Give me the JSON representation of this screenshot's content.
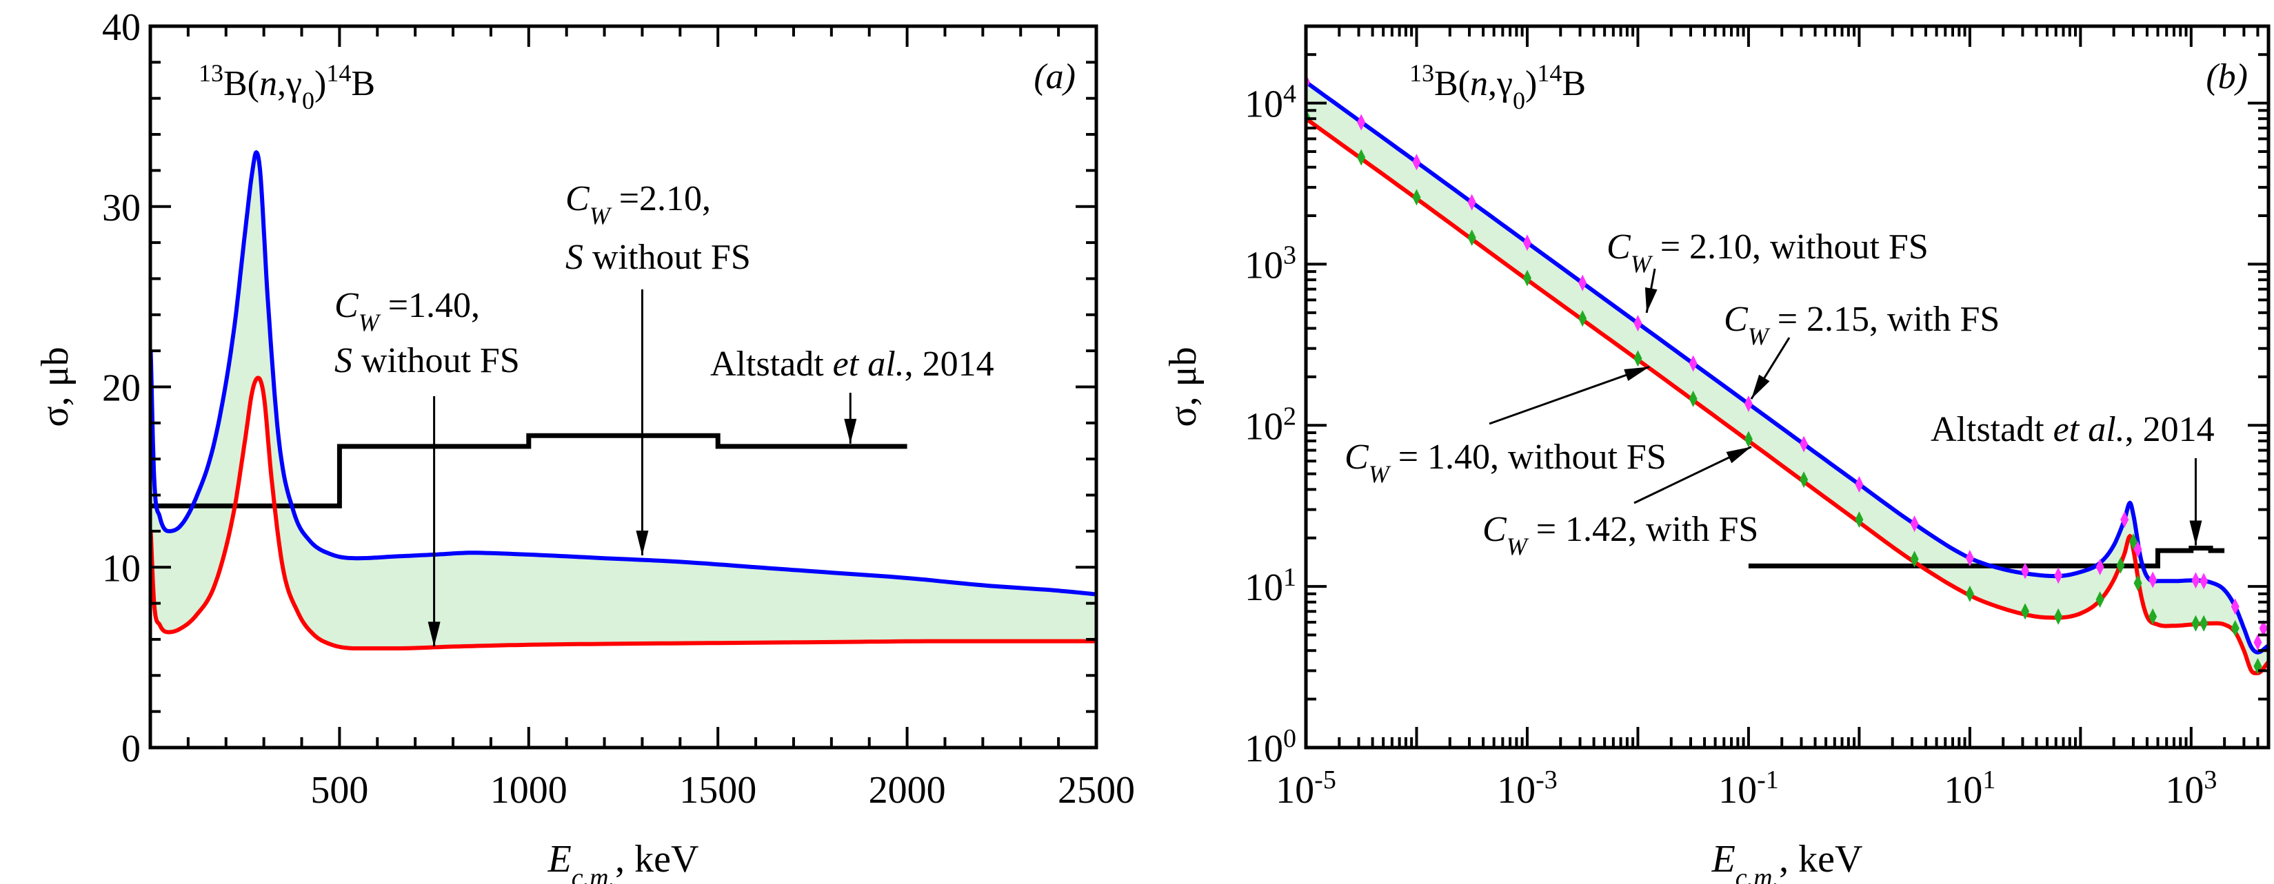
{
  "chart_data": [
    {
      "id": "a",
      "type": "area",
      "panel_label": "(a)",
      "reaction_label": {
        "pre_sup": "13",
        "main": "B(",
        "italic": "n",
        "comma": ",",
        "gamma": "γ",
        "sub": "0",
        "close": ")",
        "post_sup": "14",
        "post": "B"
      },
      "xlabel": {
        "main": "E",
        "sub": "c.m.",
        "rest": ", keV"
      },
      "ylabel": "σ, μb",
      "xscale": "linear",
      "yscale": "linear",
      "xlim": [
        0,
        2500
      ],
      "ylim": [
        0,
        40
      ],
      "xticks": [
        500,
        1000,
        1500,
        2000,
        2500
      ],
      "xtick_labels": [
        "500",
        "1000",
        "1500",
        "2000",
        "2500"
      ],
      "yticks": [
        0,
        10,
        20,
        30,
        40
      ],
      "ytick_labels": [
        "0",
        "10",
        "20",
        "30",
        "40"
      ],
      "band_color": "#d9f2d9",
      "series": [
        {
          "name": "C_W=2.10, S without FS",
          "color": "#0000ff",
          "x": [
            1,
            10,
            25,
            50,
            80,
            120,
            170,
            220,
            250,
            270,
            280,
            290,
            310,
            340,
            380,
            420,
            480,
            550,
            650,
            750,
            850,
            1000,
            1200,
            1400,
            1600,
            1800,
            2000,
            2200,
            2400,
            2500
          ],
          "y": [
            22.0,
            15.0,
            12.8,
            12.0,
            12.3,
            13.8,
            17.0,
            23.0,
            28.5,
            32.0,
            33.0,
            32.0,
            25.0,
            17.0,
            13.0,
            11.5,
            10.7,
            10.5,
            10.6,
            10.7,
            10.8,
            10.7,
            10.5,
            10.3,
            10.0,
            9.7,
            9.4,
            9.0,
            8.7,
            8.5
          ]
        },
        {
          "name": "C_W=1.40, S without FS",
          "color": "#ff0000",
          "x": [
            1,
            10,
            25,
            50,
            80,
            120,
            170,
            220,
            250,
            270,
            285,
            300,
            320,
            350,
            390,
            430,
            480,
            550,
            650,
            800,
            1000,
            1200,
            1500,
            1800,
            2100,
            2500
          ],
          "y": [
            12.0,
            8.0,
            6.8,
            6.4,
            6.6,
            7.3,
            9.0,
            13.0,
            17.0,
            19.8,
            20.5,
            19.5,
            15.0,
            10.0,
            7.5,
            6.3,
            5.7,
            5.5,
            5.5,
            5.6,
            5.7,
            5.75,
            5.8,
            5.85,
            5.9,
            5.9
          ]
        },
        {
          "name": "Altstadt et al., 2014",
          "color": "#000000",
          "type": "step",
          "bins": [
            [
              0,
              500,
              13.4
            ],
            [
              500,
              1000,
              16.7
            ],
            [
              1000,
              1500,
              17.3
            ],
            [
              1500,
              2000,
              16.7
            ]
          ]
        }
      ],
      "annotations": [
        {
          "lines": [
            {
              "cw": "C",
              "sub": "W",
              "rest": " =1.40,"
            },
            {
              "s": "S",
              "rest": " without FS"
            }
          ],
          "arrow_to": [
            750,
            5.6
          ]
        },
        {
          "lines": [
            {
              "cw": "C",
              "sub": "W",
              "rest": " =2.10,"
            },
            {
              "s": "S",
              "rest": " without FS"
            }
          ],
          "arrow_to": [
            1300,
            10.5
          ]
        },
        {
          "text": "Altstadt ",
          "italic": "et al.",
          "rest": ", 2014",
          "arrow_to": [
            1850,
            16.7
          ]
        }
      ]
    },
    {
      "id": "b",
      "type": "line",
      "panel_label": "(b)",
      "reaction_label": {
        "pre_sup": "13",
        "main": "B(",
        "italic": "n",
        "comma": ",",
        "gamma": "γ",
        "sub": "0",
        "close": ")",
        "post_sup": "14",
        "post": "B"
      },
      "xlabel": {
        "main": "E",
        "sub": "c.m.",
        "rest": ", keV"
      },
      "ylabel": "σ, μb",
      "xscale": "log",
      "yscale": "log",
      "xlim": [
        1e-05,
        5000
      ],
      "ylim": [
        1,
        30000
      ],
      "xticks": [
        1e-05,
        0.001,
        0.1,
        10,
        1000
      ],
      "xtick_labels": [
        {
          "base": "10",
          "exp": "-5"
        },
        {
          "base": "10",
          "exp": "-3"
        },
        {
          "base": "10",
          "exp": "-1"
        },
        {
          "base": "10",
          "exp": "1"
        },
        {
          "base": "10",
          "exp": "3"
        }
      ],
      "yticks": [
        1,
        10,
        100,
        1000,
        10000
      ],
      "ytick_labels": [
        {
          "base": "10",
          "exp": "0"
        },
        {
          "base": "10",
          "exp": "1"
        },
        {
          "base": "10",
          "exp": "2"
        },
        {
          "base": "10",
          "exp": "3"
        },
        {
          "base": "10",
          "exp": "4"
        }
      ],
      "band_color": "#d9f2d9",
      "series": [
        {
          "name": "C_W = 2.10, without FS",
          "color": "#0000ff",
          "x": [
            1e-05,
            0.0001,
            0.001,
            0.01,
            0.1,
            1,
            3,
            10,
            20,
            40,
            60,
            100,
            150,
            200,
            250,
            280,
            300,
            350,
            400,
            500,
            700,
            1000,
            1500,
            2000,
            2500,
            3000,
            3500,
            4000,
            5000
          ],
          "y": [
            13500,
            4300,
            1360,
            430,
            136,
            43,
            25,
            15,
            12.8,
            11.8,
            11.6,
            12.3,
            14.0,
            18.0,
            26.0,
            33.0,
            28.0,
            15.0,
            11.5,
            10.8,
            10.8,
            10.9,
            10.6,
            9.5,
            7.5,
            5.5,
            4.2,
            3.9,
            4.3
          ]
        },
        {
          "name": "C_W = 1.40, without FS",
          "color": "#ff0000",
          "x": [
            1e-05,
            0.0001,
            0.001,
            0.01,
            0.1,
            1,
            3,
            10,
            20,
            40,
            60,
            100,
            150,
            200,
            250,
            280,
            300,
            350,
            400,
            500,
            700,
            1000,
            1500,
            2000,
            2500,
            3000,
            3500,
            4000,
            5000
          ],
          "y": [
            8000,
            2550,
            800,
            255,
            80,
            25,
            14.5,
            8.8,
            7.3,
            6.5,
            6.4,
            6.8,
            8.2,
            11.0,
            16.0,
            20.5,
            17.0,
            9.0,
            6.5,
            5.8,
            5.7,
            5.8,
            5.9,
            5.8,
            5.2,
            4.0,
            3.0,
            2.9,
            3.4
          ]
        },
        {
          "name": "C_W = 2.15, with FS",
          "color": "#ff33ff",
          "marker": "diamond",
          "x": [
            1e-05,
            3.16e-05,
            0.0001,
            0.000316,
            0.001,
            0.00316,
            0.01,
            0.0316,
            0.1,
            0.316,
            1,
            3.16,
            10,
            31.6,
            63,
            150,
            250,
            330,
            450,
            1100,
            1300,
            2500,
            4000,
            4500
          ],
          "y": [
            13500,
            7600,
            4300,
            2420,
            1360,
            765,
            430,
            242,
            136,
            76.5,
            43,
            24.5,
            15,
            12.5,
            11.7,
            13.2,
            26.0,
            17.0,
            11.0,
            10.9,
            10.8,
            7.5,
            4.5,
            5.5
          ]
        },
        {
          "name": "C_W = 1.42, with FS",
          "color": "#22aa22",
          "marker": "diamond",
          "x": [
            1e-05,
            3.16e-05,
            0.0001,
            0.000316,
            0.001,
            0.00316,
            0.01,
            0.0316,
            0.1,
            0.316,
            1,
            3.16,
            10,
            31.6,
            63,
            150,
            230,
            300,
            330,
            450,
            1100,
            1300,
            2500,
            4000
          ],
          "y": [
            8200,
            4600,
            2600,
            1460,
            820,
            460,
            260,
            146,
            82,
            46,
            26,
            14.8,
            9.0,
            7.0,
            6.5,
            8.3,
            13.5,
            19.0,
            10.5,
            6.5,
            5.9,
            5.9,
            5.5,
            3.2
          ]
        },
        {
          "name": "Altstadt et al., 2014",
          "color": "#000000",
          "type": "step",
          "bins": [
            [
              0.1,
              500,
              13.4
            ],
            [
              500,
              1000,
              16.7
            ],
            [
              1000,
              1500,
              17.3
            ],
            [
              1500,
              2000,
              16.7
            ]
          ]
        }
      ],
      "annotations": [
        {
          "cw": "C",
          "sub": "W",
          "rest": " = 2.10, without FS",
          "arrow_to": [
            0.01,
            430
          ]
        },
        {
          "cw": "C",
          "sub": "W",
          "rest": " = 2.15, with FS",
          "arrow_to": [
            0.1,
            136
          ]
        },
        {
          "cw": "C",
          "sub": "W",
          "rest": " = 1.40, without FS",
          "arrow_to": [
            0.01,
            255
          ]
        },
        {
          "cw": "C",
          "sub": "W",
          "rest": " = 1.42, with FS",
          "arrow_to": [
            0.1,
            82
          ]
        },
        {
          "text": "Altstadt ",
          "italic": "et al.",
          "rest": ", 2014",
          "arrow_to": [
            1000,
            16.7
          ]
        }
      ]
    }
  ]
}
